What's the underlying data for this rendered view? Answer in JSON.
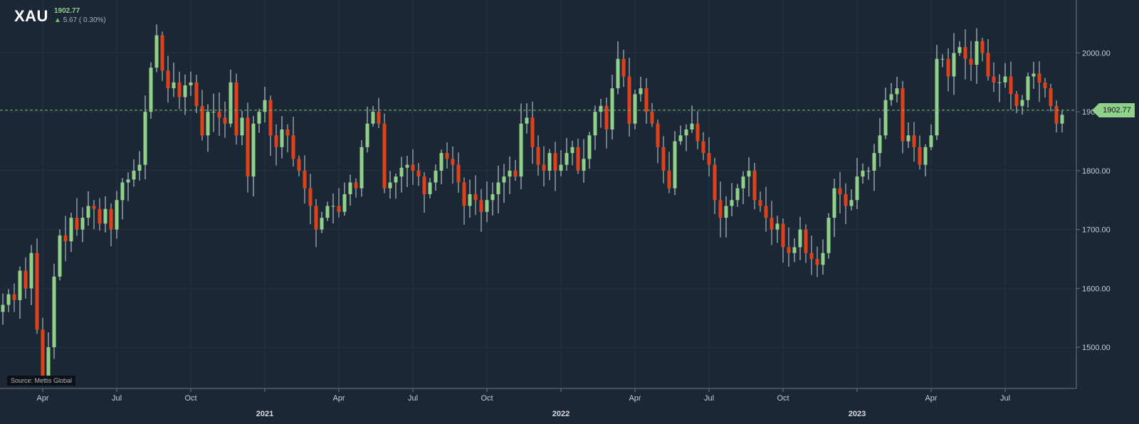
{
  "header": {
    "symbol": "XAU",
    "last_price": "1902.77",
    "change": "5.67 ( 0.30%)"
  },
  "source_label": "Source: Mettis Global",
  "price_tag": "1902.77",
  "colors": {
    "background": "#1c2735",
    "up": "#8fd18a",
    "down": "#e0401c",
    "grid": "#263343",
    "last_price_line": "#7fbf73"
  },
  "icons": {
    "change_direction": "arrow-up-icon"
  },
  "chart_data": {
    "type": "candlestick",
    "title": "",
    "xlabel": "",
    "ylabel": "",
    "ylim": [
      1430,
      2090
    ],
    "y_ticks": [
      "1500.00",
      "1600.00",
      "1700.00",
      "1800.00",
      "1900.00",
      "2000.00"
    ],
    "y_tick_values": [
      1500,
      1600,
      1700,
      1800,
      1900,
      2000
    ],
    "x_range": [
      0,
      181
    ],
    "x_ticks": [
      {
        "label": "Apr",
        "week": 7
      },
      {
        "label": "Jul",
        "week": 20
      },
      {
        "label": "Oct",
        "week": 33
      },
      {
        "label": "2021",
        "week": 46,
        "major": true
      },
      {
        "label": "Apr",
        "week": 59
      },
      {
        "label": "Jul",
        "week": 72
      },
      {
        "label": "Oct",
        "week": 85
      },
      {
        "label": "2022",
        "week": 98,
        "major": true
      },
      {
        "label": "Apr",
        "week": 111
      },
      {
        "label": "Jul",
        "week": 124
      },
      {
        "label": "Oct",
        "week": 137
      },
      {
        "label": "2023",
        "week": 150,
        "major": true
      },
      {
        "label": "Apr",
        "week": 163
      },
      {
        "label": "Jul",
        "week": 176
      }
    ],
    "last_price": 1902.77,
    "closes": [
      1572,
      1590,
      1580,
      1630,
      1600,
      1660,
      1530,
      1450,
      1500,
      1620,
      1690,
      1680,
      1720,
      1700,
      1720,
      1740,
      1735,
      1710,
      1735,
      1700,
      1750,
      1780,
      1785,
      1800,
      1810,
      1900,
      1975,
      2030,
      1970,
      1940,
      1950,
      1925,
      1945,
      1950,
      1910,
      1860,
      1900,
      1900,
      1890,
      1880,
      1950,
      1860,
      1890,
      1790,
      1880,
      1900,
      1920,
      1860,
      1840,
      1870,
      1860,
      1820,
      1800,
      1770,
      1740,
      1700,
      1720,
      1740,
      1740,
      1730,
      1760,
      1780,
      1770,
      1840,
      1880,
      1900,
      1880,
      1770,
      1780,
      1790,
      1805,
      1810,
      1800,
      1790,
      1760,
      1780,
      1800,
      1830,
      1820,
      1810,
      1780,
      1740,
      1760,
      1750,
      1730,
      1750,
      1760,
      1780,
      1790,
      1800,
      1790,
      1880,
      1890,
      1840,
      1810,
      1800,
      1830,
      1800,
      1810,
      1830,
      1840,
      1800,
      1820,
      1860,
      1900,
      1910,
      1870,
      1940,
      1990,
      1960,
      1880,
      1930,
      1940,
      1900,
      1880,
      1840,
      1800,
      1770,
      1850,
      1860,
      1870,
      1880,
      1850,
      1830,
      1810,
      1750,
      1720,
      1740,
      1750,
      1770,
      1790,
      1800,
      1750,
      1740,
      1720,
      1700,
      1710,
      1670,
      1660,
      1670,
      1700,
      1660,
      1650,
      1640,
      1660,
      1720,
      1770,
      1760,
      1740,
      1750,
      1790,
      1800,
      1800,
      1830,
      1860,
      1920,
      1930,
      1940,
      1850,
      1860,
      1840,
      1810,
      1840,
      1860,
      1990,
      1990,
      1960,
      2000,
      2010,
      1990,
      1980,
      2020,
      2000,
      1960,
      1950,
      1950,
      1960,
      1930,
      1910,
      1920,
      1960,
      1965,
      1950,
      1940,
      1910,
      1880,
      1895
    ]
  }
}
